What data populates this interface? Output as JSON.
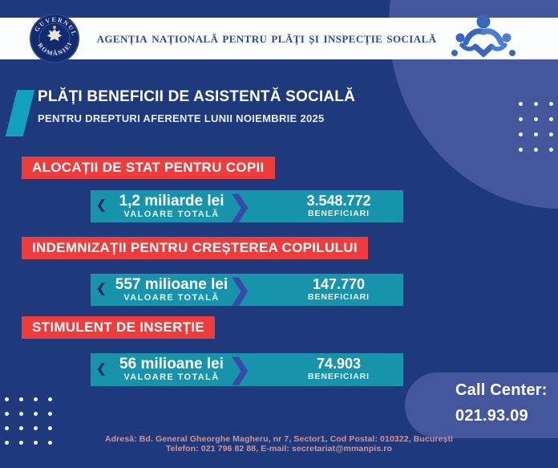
{
  "header": {
    "agency_title": "Agenția Națională pentru Plăți și Inspecție Socială",
    "logo_text_top": "GUVERNUL",
    "logo_text_bottom": "ROMÂNIEI"
  },
  "title": {
    "main": "PLĂȚI BENEFICII DE ASISTENTĂ SOCIALĂ",
    "subtitle": "PENTRU DREPTURI AFERENTE LUNII NOIEMBRIE 2025"
  },
  "sections": [
    {
      "banner": "ALOCAȚII DE STAT PENTRU COPII",
      "value": "1,2 miliarde lei",
      "value_label": "VALOARE TOTALĂ",
      "beneficiaries": "3.548.772",
      "beneficiaries_label": "BENEFICIARI"
    },
    {
      "banner": "INDEMNIZAȚII PENTRU CREȘTEREA COPILULUI",
      "value": "557 milioane lei",
      "value_label": "VALOARE TOTALĂ",
      "beneficiaries": "147.770",
      "beneficiaries_label": "BENEFICIARI"
    },
    {
      "banner": "STIMULENT DE INSERȚIE",
      "value": "56 milioane lei",
      "value_label": "VALOARE TOTALĂ",
      "beneficiaries": "74.903",
      "beneficiaries_label": "BENEFICIARI"
    }
  ],
  "call_center": {
    "label": "Call Center:",
    "phone": "021.93.09"
  },
  "footer": {
    "address_line": "Adresă: Bd. General Gheorghe Magheru, nr 7, Sector1, Cod Postal: 010322, București",
    "contact_line": "Telefon: 021 796 82 88, E-mail: secretariat@mmanpis.ro"
  },
  "icons": {
    "chevron_left": "❮",
    "chevron_right": "❯"
  },
  "colors": {
    "background_navy": "#1f3a7c",
    "light_blue_shapes": "#44579d",
    "teal_bar": "#1793ac",
    "teal_slash": "#12a0ba",
    "banner_red": "#ee3b3b",
    "header_text_navy": "#2b4b95",
    "chevron_indigo": "#3a49a6",
    "footer_salmon": "#de8f88",
    "white": "#ffffff"
  }
}
